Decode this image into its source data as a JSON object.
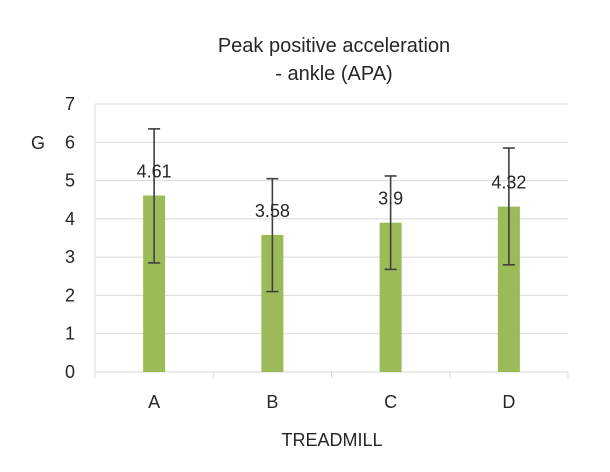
{
  "colors": {
    "bar": "#9bbb59",
    "gridline": "#d9d9d9",
    "error_bar": "#404040",
    "text": "#262626"
  },
  "chart_data": {
    "type": "bar",
    "title": [
      "Peak positive acceleration",
      "- ankle (APA)"
    ],
    "xlabel": "TREADMILL",
    "ylabel": "G",
    "categories": [
      "A",
      "B",
      "C",
      "D"
    ],
    "values": [
      4.61,
      3.58,
      3.9,
      4.32
    ],
    "value_labels": [
      "4.61",
      "3.58",
      "3.9",
      "4.32"
    ],
    "error_low": [
      2.85,
      2.1,
      2.68,
      2.8
    ],
    "error_high": [
      6.35,
      5.05,
      5.12,
      5.85
    ],
    "ylim": [
      0,
      7
    ],
    "yticks": [
      0,
      1,
      2,
      3,
      4,
      5,
      6,
      7
    ],
    "grid": true,
    "legend": "none"
  }
}
